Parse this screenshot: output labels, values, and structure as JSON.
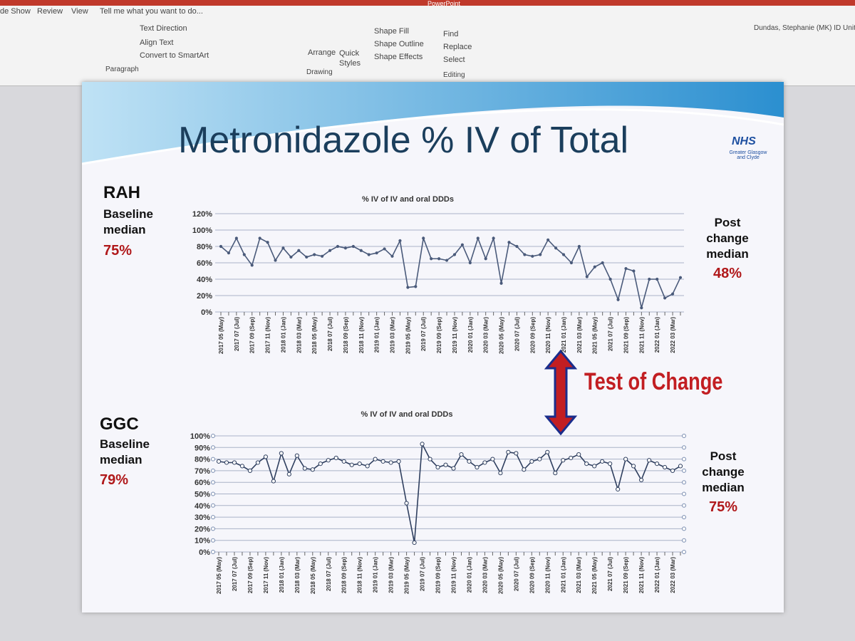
{
  "ribbon": {
    "tabs": [
      "de Show",
      "Review",
      "View"
    ],
    "tell_me": "Tell me what you want to do...",
    "user": "Dundas, Stephanie (MK) ID Unit C",
    "paragraph": {
      "items": [
        "Text Direction",
        "Align Text",
        "Convert to SmartArt"
      ],
      "label": "Paragraph"
    },
    "drawing": {
      "arrange": "Arrange",
      "quick_styles": "Quick Styles",
      "items": [
        "Shape Fill",
        "Shape Outline",
        "Shape Effects"
      ],
      "label": "Drawing"
    },
    "editing": {
      "items": [
        "Find",
        "Replace",
        "Select"
      ],
      "label": "Editing"
    },
    "app": "PowerPoint"
  },
  "slide": {
    "title": "Metronidazole % IV of Total",
    "logo": {
      "name": "NHS",
      "sub": "Greater Glasgow and Clyde"
    },
    "rah": {
      "site": "RAH",
      "baseline": "Baseline median",
      "baseline_value": "75%",
      "post": "Post change median",
      "post_value": "48%"
    },
    "ggc": {
      "site": "GGC",
      "baseline": "Baseline median",
      "baseline_value": "79%",
      "post": "Post change median",
      "post_value": "75%"
    },
    "arrow_label": "Test of Change"
  },
  "chart_data": [
    {
      "type": "line",
      "title": "% IV of IV and oral DDDs",
      "categories": [
        "2017 05 (May)",
        null,
        "2017 07 (Jul)",
        null,
        "2017 09 (Sep)",
        null,
        "2017 11 (Nov)",
        null,
        "2018 01 (Jan)",
        null,
        "2018 03 (Mar)",
        null,
        "2018 05 (May)",
        null,
        "2018 07 (Jul)",
        null,
        "2018 09 (Sep)",
        null,
        "2018 11 (Nov)",
        null,
        "2019 01 (Jan)",
        null,
        "2019 03 (Mar)",
        null,
        "2019 05 (May)",
        null,
        "2019 07 (Jul)",
        null,
        "2019 09 (Sep)",
        null,
        "2019 11 (Nov)",
        null,
        "2020 01 (Jan)",
        null,
        "2020 03 (Mar)",
        null,
        "2020 05 (May)",
        null,
        "2020 07 (Jul)",
        null,
        "2020 09 (Sep)",
        null,
        "2020 11 (Nov)",
        null,
        "2021 01 (Jan)",
        null,
        "2021 03 (Mar)",
        null,
        "2021 05 (May)",
        null,
        "2021 07 (Jul)",
        null,
        "2021 09 (Sep)",
        null,
        "2021 11 (Nov)",
        null,
        "2022 01 (Jan)",
        null,
        "2022 03 (Mar)",
        null
      ],
      "values": [
        80,
        72,
        90,
        70,
        57,
        90,
        85,
        63,
        78,
        67,
        75,
        67,
        70,
        68,
        75,
        80,
        78,
        80,
        75,
        70,
        72,
        77,
        68,
        87,
        30,
        31,
        90,
        65,
        65,
        63,
        70,
        82,
        60,
        90,
        65,
        90,
        35,
        85,
        80,
        70,
        68,
        70,
        88,
        78,
        70,
        60,
        80,
        43,
        55,
        60,
        40,
        15,
        53,
        50,
        5,
        40,
        40,
        17,
        22,
        42
      ],
      "color": "#4a5a7a",
      "markers": false,
      "ylim": [
        0,
        120
      ],
      "yticks": [
        {
          "value": 0,
          "label": "0%"
        },
        {
          "value": 20,
          "label": "20%"
        },
        {
          "value": 40,
          "label": "40%"
        },
        {
          "value": 60,
          "label": "60%"
        },
        {
          "value": 80,
          "label": "80%"
        },
        {
          "value": 100,
          "label": "100%"
        },
        {
          "value": 120,
          "label": "120%"
        }
      ],
      "grid": true
    },
    {
      "type": "line",
      "title": "% IV of IV and oral DDDs",
      "categories": [
        "2017 05 (May)",
        null,
        "2017 07 (Jul)",
        null,
        "2017 09 (Sep)",
        null,
        "2017 11 (Nov)",
        null,
        "2018 01 (Jan)",
        null,
        "2018 03 (Mar)",
        null,
        "2018 05 (May)",
        null,
        "2018 07 (Jul)",
        null,
        "2018 09 (Sep)",
        null,
        "2018 11 (Nov)",
        null,
        "2019 01 (Jan)",
        null,
        "2019 03 (Mar)",
        null,
        "2019 05 (May)",
        null,
        "2019 07 (Jul)",
        null,
        "2019 09 (Sep)",
        null,
        "2019 11 (Nov)",
        null,
        "2020 01 (Jan)",
        null,
        "2020 03 (Mar)",
        null,
        "2020 05 (May)",
        null,
        "2020 07 (Jul)",
        null,
        "2020 09 (Sep)",
        null,
        "2020 11 (Nov)",
        null,
        "2021 01 (Jan)",
        null,
        "2021 03 (Mar)",
        null,
        "2021 05 (May)",
        null,
        "2021 07 (Jul)",
        null,
        "2021 09 (Sep)",
        null,
        "2021 11 (Nov)",
        null,
        "2022 01 (Jan)",
        null,
        "2022 03 (Mar)",
        null
      ],
      "values": [
        78,
        77,
        77,
        74,
        70,
        77,
        82,
        61,
        85,
        67,
        83,
        72,
        71,
        76,
        79,
        81,
        78,
        75,
        76,
        74,
        80,
        78,
        77,
        78,
        42,
        8,
        93,
        80,
        73,
        75,
        72,
        84,
        78,
        73,
        77,
        80,
        68,
        86,
        85,
        71,
        78,
        80,
        86,
        68,
        79,
        81,
        84,
        76,
        74,
        78,
        76,
        54,
        80,
        74,
        62,
        79,
        76,
        73,
        70,
        74
      ],
      "color": "#2f3f5f",
      "markers": true,
      "ylim": [
        0,
        100
      ],
      "yticks": [
        {
          "value": 0,
          "label": "0%"
        },
        {
          "value": 10,
          "label": "10%"
        },
        {
          "value": 20,
          "label": "20%"
        },
        {
          "value": 30,
          "label": "30%"
        },
        {
          "value": 40,
          "label": "40%"
        },
        {
          "value": 50,
          "label": "50%"
        },
        {
          "value": 60,
          "label": "60%"
        },
        {
          "value": 70,
          "label": "70%"
        },
        {
          "value": 80,
          "label": "80%"
        },
        {
          "value": 90,
          "label": "90%"
        },
        {
          "value": 100,
          "label": "100%"
        }
      ],
      "grid": true
    }
  ]
}
